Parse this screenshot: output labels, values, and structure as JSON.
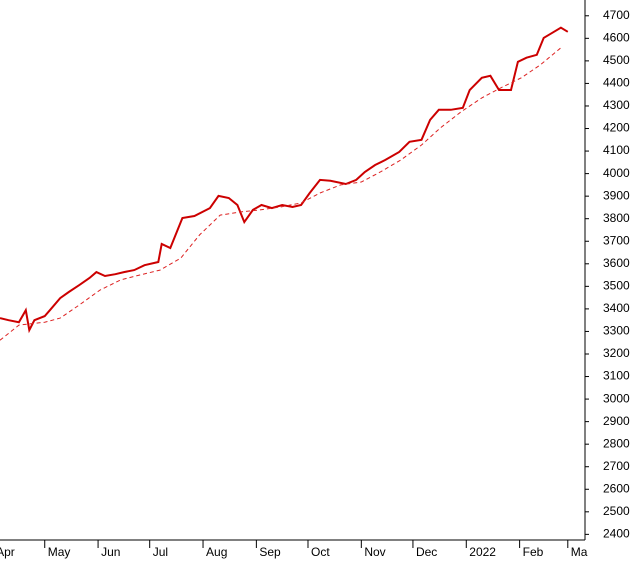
{
  "chart_data": {
    "type": "line",
    "xlim": [
      4,
      344
    ],
    "ylim": [
      2375,
      4770
    ],
    "xticks": [
      {
        "value": 0,
        "label": "Apr"
      },
      {
        "value": 30,
        "label": "May"
      },
      {
        "value": 61,
        "label": "Jun"
      },
      {
        "value": 91,
        "label": "Jul"
      },
      {
        "value": 122,
        "label": "Aug"
      },
      {
        "value": 153,
        "label": "Sep"
      },
      {
        "value": 183,
        "label": "Oct"
      },
      {
        "value": 214,
        "label": "Nov"
      },
      {
        "value": 244,
        "label": "Dec"
      },
      {
        "value": 275,
        "label": "2022"
      },
      {
        "value": 306,
        "label": "Feb"
      },
      {
        "value": 334,
        "label": "Ma"
      }
    ],
    "yticks": [
      2400,
      2500,
      2600,
      2700,
      2800,
      2900,
      3000,
      3100,
      3200,
      3300,
      3400,
      3500,
      3600,
      3700,
      3800,
      3900,
      4000,
      4100,
      4200,
      4300,
      4400,
      4500,
      4600,
      4700
    ],
    "series": [
      {
        "color": "#cc0000",
        "style": "solid",
        "x": [
          4,
          9,
          15,
          19,
          21,
          24,
          30,
          33,
          39,
          44,
          50,
          56,
          60,
          65,
          71,
          76,
          82,
          88,
          96,
          98,
          103,
          110,
          117,
          126,
          131,
          137,
          142,
          146,
          151,
          156,
          162,
          168,
          174,
          179,
          184,
          190,
          196,
          205,
          211,
          216,
          222,
          228,
          236,
          242,
          249,
          254,
          259,
          266,
          273,
          277,
          284,
          289,
          294,
          301,
          305,
          310,
          316,
          320,
          324,
          330,
          334
        ],
        "values": [
          3359,
          3350,
          3341,
          3394,
          3306,
          3350,
          3368,
          3394,
          3448,
          3475,
          3505,
          3537,
          3563,
          3546,
          3554,
          3563,
          3572,
          3594,
          3608,
          3688,
          3670,
          3803,
          3812,
          3847,
          3901,
          3892,
          3861,
          3785,
          3839,
          3861,
          3847,
          3861,
          3852,
          3861,
          3914,
          3972,
          3968,
          3954,
          3972,
          4007,
          4038,
          4061,
          4096,
          4141,
          4150,
          4238,
          4283,
          4283,
          4292,
          4371,
          4425,
          4434,
          4371,
          4371,
          4496,
          4514,
          4527,
          4602,
          4620,
          4647,
          4629
        ]
      },
      {
        "color": "#dd2222",
        "style": "dashed",
        "x": [
          4,
          15,
          30,
          39,
          50,
          62,
          74,
          85,
          97,
          109,
          120,
          132,
          144,
          155,
          167,
          179,
          190,
          202,
          214,
          225,
          237,
          249,
          260,
          272,
          284,
          295,
          307,
          318,
          330
        ],
        "values": [
          3261,
          3328,
          3341,
          3359,
          3417,
          3483,
          3528,
          3550,
          3572,
          3625,
          3728,
          3816,
          3830,
          3839,
          3852,
          3870,
          3914,
          3950,
          3963,
          4007,
          4061,
          4127,
          4203,
          4274,
          4336,
          4380,
          4425,
          4482,
          4558
        ]
      }
    ]
  }
}
